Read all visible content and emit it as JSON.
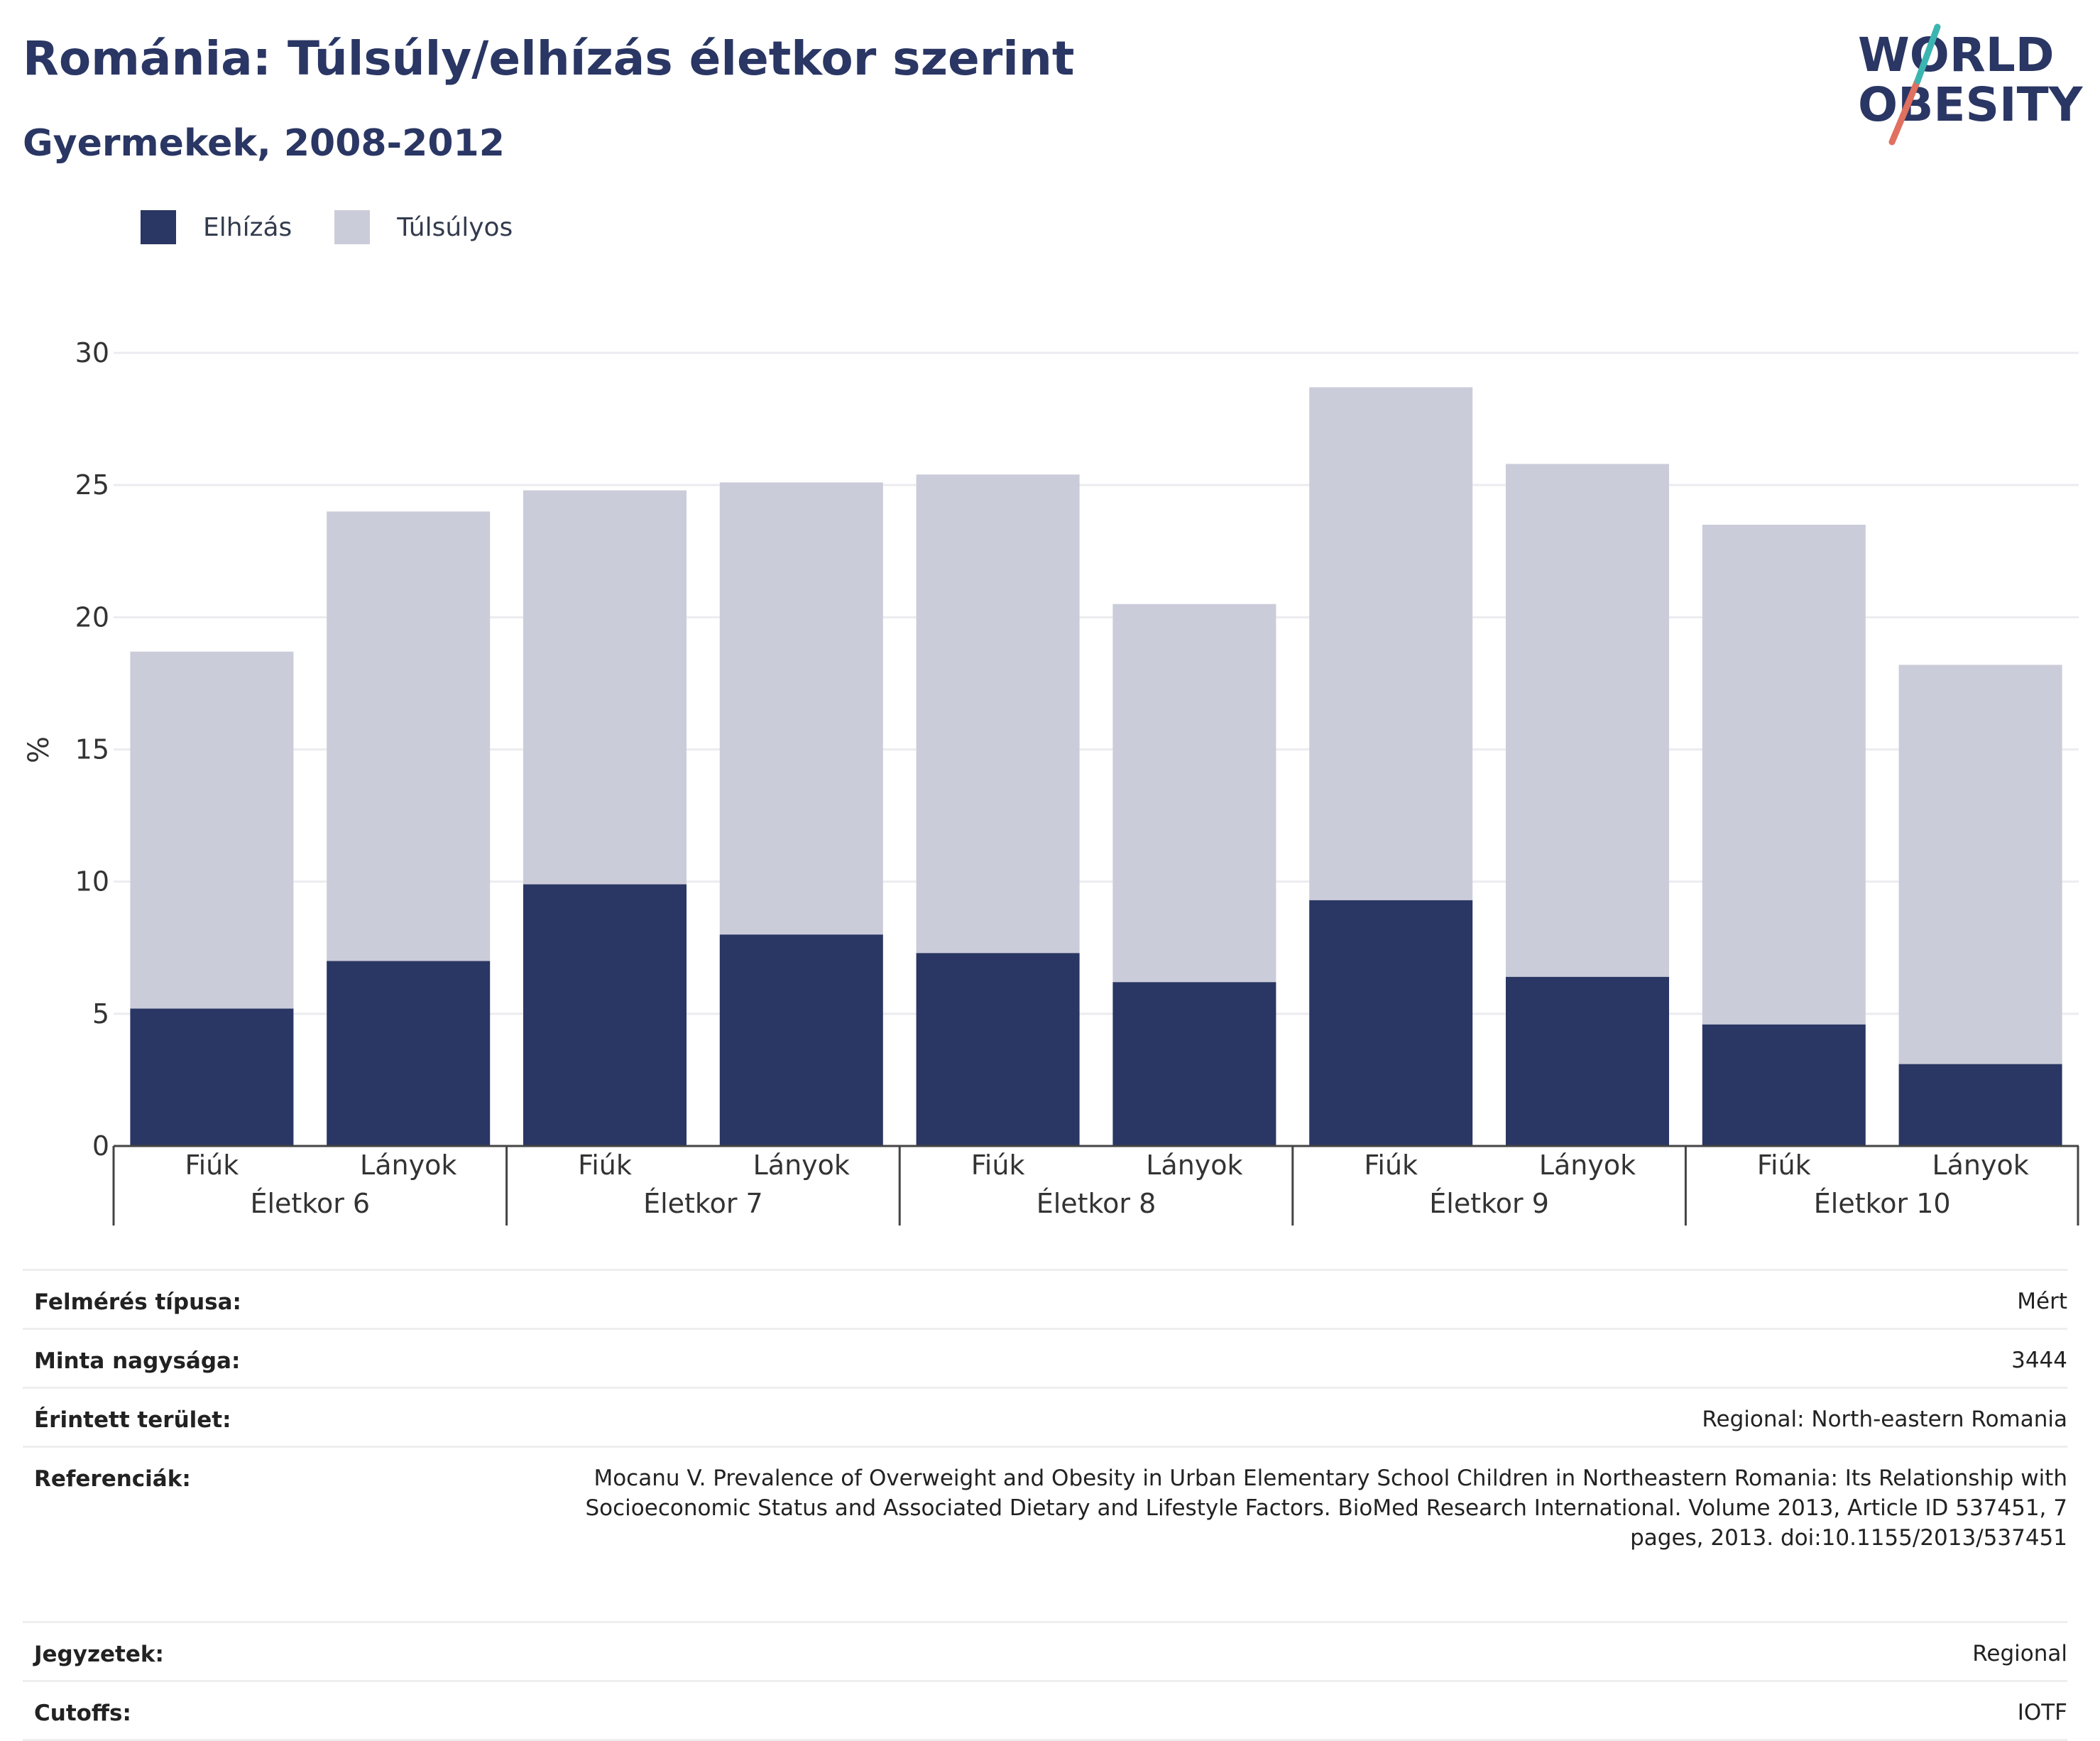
{
  "header": {
    "title": "Románia: Túlsúly/elhízás életkor szerint",
    "subtitle": "Gyermekek, 2008-2012"
  },
  "logo": {
    "line1": "WORLD",
    "line2": "OBESITY"
  },
  "legend": {
    "items": [
      {
        "label": "Elhízás",
        "color": "#2a3663"
      },
      {
        "label": "Túlsúlyos",
        "color": "#cbccd9"
      }
    ]
  },
  "chart_data": {
    "type": "bar",
    "stacked": true,
    "ylabel": "%",
    "ylim": [
      0,
      30
    ],
    "yticks": [
      0,
      5,
      10,
      15,
      20,
      25,
      30
    ],
    "grid": true,
    "legend_position": "top-left",
    "groups": [
      {
        "label": "Életkor 6",
        "categories": [
          "Fiúk",
          "Lányok"
        ]
      },
      {
        "label": "Életkor 7",
        "categories": [
          "Fiúk",
          "Lányok"
        ]
      },
      {
        "label": "Életkor 8",
        "categories": [
          "Fiúk",
          "Lányok"
        ]
      },
      {
        "label": "Életkor 9",
        "categories": [
          "Fiúk",
          "Lányok"
        ]
      },
      {
        "label": "Életkor 10",
        "categories": [
          "Fiúk",
          "Lányok"
        ]
      }
    ],
    "series": [
      {
        "name": "Elhízás",
        "color": "#2a3663",
        "values": [
          5.2,
          7.0,
          9.9,
          8.0,
          7.3,
          6.2,
          9.3,
          6.4,
          4.6,
          3.1
        ]
      },
      {
        "name": "Túlsúlyos",
        "color": "#cbccd9",
        "values": [
          13.5,
          17.0,
          14.9,
          17.1,
          18.1,
          14.3,
          19.4,
          19.4,
          18.9,
          15.1
        ]
      }
    ]
  },
  "info_table": [
    {
      "label": "Felmérés típusa:",
      "value": "Mért"
    },
    {
      "label": "Minta nagysága:",
      "value": "3444"
    },
    {
      "label": "Érintett terület:",
      "value": "Regional: North-eastern Romania"
    },
    {
      "label": "Referenciák:",
      "value": "Mocanu V. Prevalence of Overweight and Obesity in Urban Elementary School Children in Northeastern Romania: Its Relationship with Socioeconomic Status and Associated Dietary and Lifestyle Factors. BioMed Research International. Volume 2013, Article ID 537451, 7 pages, 2013. doi:10.1155/2013/537451"
    },
    {
      "label": "Jegyzetek:",
      "value": "Regional"
    },
    {
      "label": "Cutoffs:",
      "value": "IOTF"
    }
  ]
}
